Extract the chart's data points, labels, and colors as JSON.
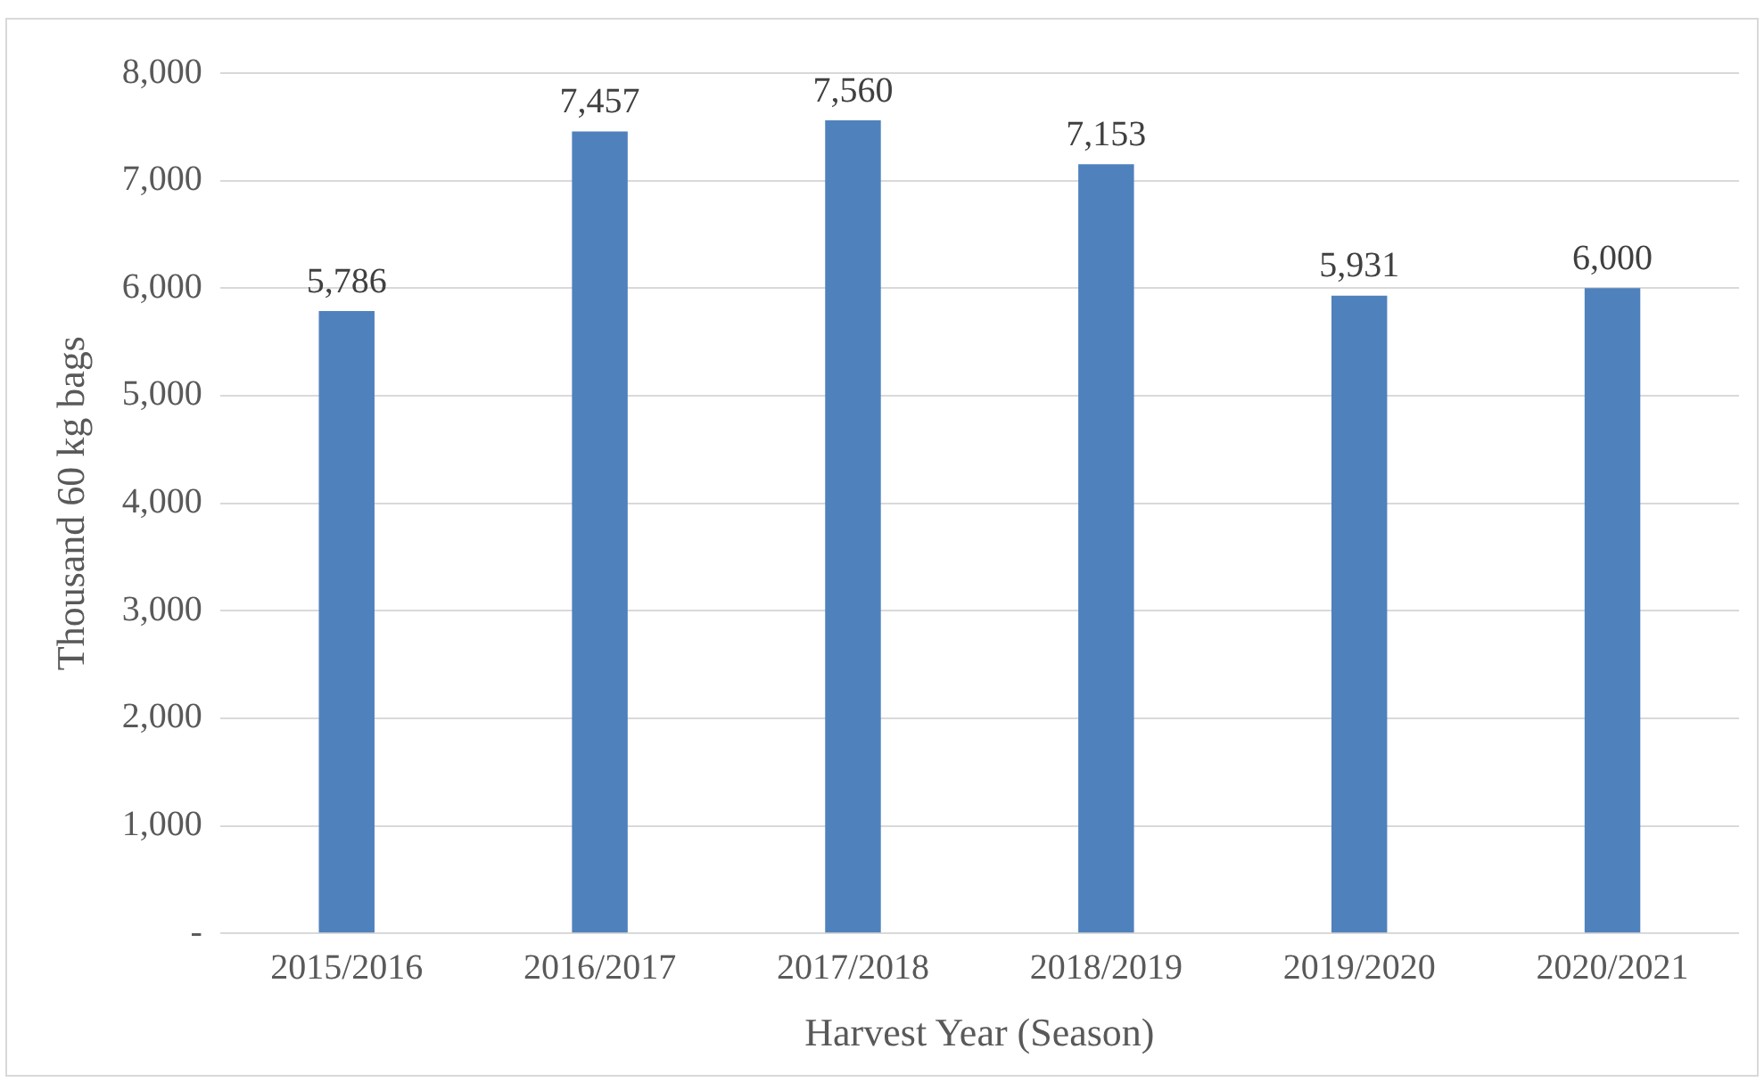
{
  "chart_data": {
    "type": "bar",
    "xlabel": "Harvest Year (Season)",
    "ylabel": "Thousand 60 kg bags",
    "categories": [
      "2015/2016",
      "2016/2017",
      "2017/2018",
      "2018/2019",
      "2019/2020",
      "2020/2021"
    ],
    "values": [
      5786,
      7457,
      7560,
      7153,
      5931,
      6000
    ],
    "value_labels": [
      "5,786",
      "7,457",
      "7,560",
      "7,153",
      "5,931",
      "6,000"
    ],
    "color": "#4f81bd",
    "ylim": [
      0,
      8000
    ],
    "yticks": [
      {
        "value": 0,
        "label": "-"
      },
      {
        "value": 1000,
        "label": "1,000"
      },
      {
        "value": 2000,
        "label": "2,000"
      },
      {
        "value": 3000,
        "label": "3,000"
      },
      {
        "value": 4000,
        "label": "4,000"
      },
      {
        "value": 5000,
        "label": "5,000"
      },
      {
        "value": 6000,
        "label": "6,000"
      },
      {
        "value": 7000,
        "label": "7,000"
      },
      {
        "value": 8000,
        "label": "8,000"
      }
    ],
    "grid": "y",
    "legend": false
  }
}
